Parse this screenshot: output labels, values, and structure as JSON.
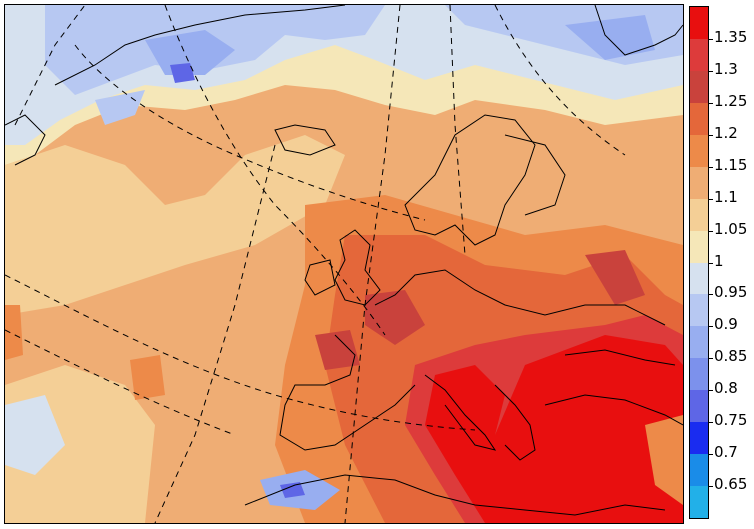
{
  "colorbar": {
    "levels": [
      {
        "label": "1.35",
        "color": "#e80f0f"
      },
      {
        "label": "1.3",
        "color": "#dd3b3b"
      },
      {
        "label": "1.25",
        "color": "#c9423c"
      },
      {
        "label": "1.2",
        "color": "#e4673a"
      },
      {
        "label": "1.15",
        "color": "#ed8a49"
      },
      {
        "label": "1.1",
        "color": "#efad74"
      },
      {
        "label": "1.05",
        "color": "#f4cf96"
      },
      {
        "label": "1",
        "color": "#f5e7b8"
      },
      {
        "label": "0.95",
        "color": "#d6e1ef"
      },
      {
        "label": "0.9",
        "color": "#b7c8f2"
      },
      {
        "label": "0.85",
        "color": "#98aef0"
      },
      {
        "label": "0.8",
        "color": "#7c91ec"
      },
      {
        "label": "0.75",
        "color": "#5e66e6"
      },
      {
        "label": "0.7",
        "color": "#1a2cf0"
      },
      {
        "label": "0.65",
        "color": "#1a8ce8"
      },
      {
        "label": "",
        "color": "#22b0e8"
      }
    ]
  },
  "map": {
    "colors": {
      "ocean_north": "#b7c8f2",
      "ice_blue": "#98aef0",
      "deep_blue": "#5e66e6",
      "neutral": "#f5e7b8",
      "light_tan": "#f4cf96",
      "tan": "#efad74",
      "orange": "#ed8a49",
      "dark_orange": "#e4673a",
      "brick": "#c9423c",
      "red": "#e80f0f",
      "border": "#000000"
    }
  }
}
